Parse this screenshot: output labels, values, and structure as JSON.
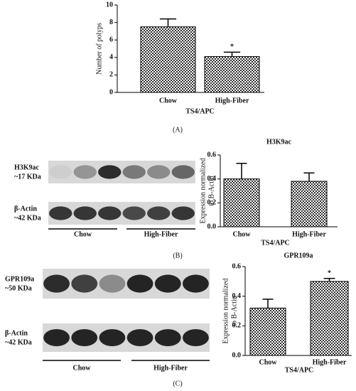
{
  "chart_data": [
    {
      "type": "bar",
      "y_label": "Number of polyps",
      "x_label": "TS4/APC",
      "categories": [
        "Chow",
        "High-Fiber"
      ],
      "values": [
        7.5,
        4.1
      ],
      "errors": [
        0.9,
        0.5
      ],
      "color": "#333333",
      "fill_pattern": "checker",
      "ylim": [
        0,
        10
      ],
      "yticks": [
        0,
        2,
        4,
        6,
        8,
        10
      ],
      "annotations": [
        {
          "category": "High-Fiber",
          "text": "*"
        }
      ]
    },
    {
      "type": "bar",
      "title": "H3K9ac",
      "y_label": [
        "Expression normalized",
        "to B-Actin"
      ],
      "x_label": "TS4/APC",
      "categories": [
        "Chow",
        "High-Fiber"
      ],
      "values": [
        0.4,
        0.38
      ],
      "errors": [
        0.13,
        0.07
      ],
      "color": "#333333",
      "fill_pattern": "checker",
      "ylim": [
        0,
        0.6
      ],
      "yticks": [
        {
          "value": 0,
          "label": "0.0"
        },
        0.2,
        0.4,
        0.6
      ]
    },
    {
      "type": "bar",
      "title": "GPR109a",
      "y_label": [
        "Expression normalized",
        "to B-Actin"
      ],
      "x_label": "TS4/APC",
      "categories": [
        "Chow",
        "High-Fiber"
      ],
      "values": [
        0.32,
        0.5
      ],
      "errors": [
        0.06,
        0.02
      ],
      "color": "#333333",
      "fill_pattern": "checker",
      "ylim": [
        0,
        0.6
      ],
      "yticks": [
        {
          "value": 0,
          "label": "0.0"
        },
        0.2,
        0.4,
        0.6
      ],
      "annotations": [
        {
          "category": "High-Fiber",
          "text": "*"
        }
      ]
    }
  ],
  "blots": [
    {
      "rows": [
        {
          "name": "H3K9ac",
          "size": "~17 KDa"
        },
        {
          "name": "β-Actin",
          "size": "~42 KDa"
        }
      ],
      "groups": [
        "Chow",
        "High-Fiber"
      ]
    },
    {
      "rows": [
        {
          "name": "GPR109a",
          "size": "~50 KDa"
        },
        {
          "name": "β-Actin",
          "size": "~42 KDa"
        }
      ],
      "groups": [
        "Chow",
        "High-Fiber"
      ]
    }
  ],
  "panel_labels": [
    "(A)",
    "(B)",
    "(C)"
  ]
}
